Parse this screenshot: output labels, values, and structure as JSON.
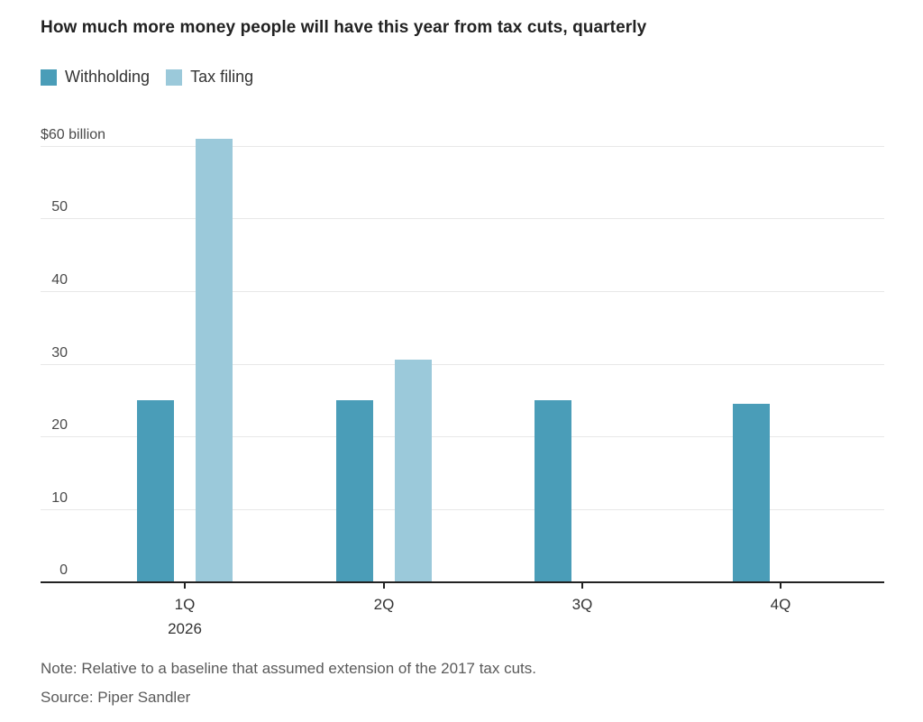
{
  "chart": {
    "title": "How much more money people will have this year from tax cuts, quarterly",
    "note": "Note: Relative to a baseline that assumed extension of the 2017 tax cuts.",
    "source": "Source: Piper Sandler"
  },
  "chart_data": {
    "type": "bar",
    "title": "How much more money people will have this year from tax cuts, quarterly",
    "categories": [
      "1Q",
      "2Q",
      "3Q",
      "4Q"
    ],
    "x_sublabels": [
      "2026",
      "",
      "",
      ""
    ],
    "series": [
      {
        "name": "Withholding",
        "color": "#4a9db8",
        "values": [
          25,
          25,
          25,
          24.5
        ]
      },
      {
        "name": "Tax filing",
        "color": "#9bc9da",
        "values": [
          61,
          30.5,
          0,
          0
        ]
      }
    ],
    "unit": "$ billion",
    "y_ticks": [
      0,
      10,
      20,
      30,
      40,
      50,
      60
    ],
    "y_top_tick_label": "$60 billion",
    "ylim": [
      0,
      62
    ],
    "grid": true,
    "legend_position": "top-left",
    "note": "Note: Relative to a baseline that assumed extension of the 2017 tax cuts.",
    "source": "Source: Piper Sandler"
  }
}
